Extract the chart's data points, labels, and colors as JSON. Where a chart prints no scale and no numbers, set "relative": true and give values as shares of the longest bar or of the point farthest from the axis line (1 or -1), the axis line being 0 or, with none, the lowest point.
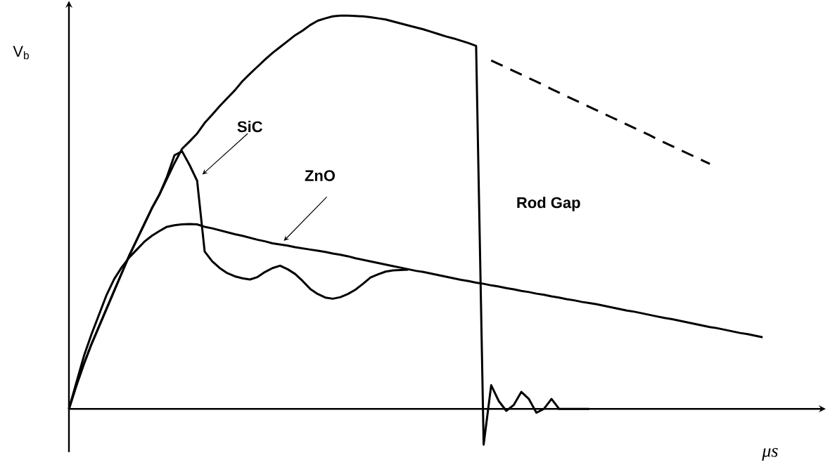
{
  "chart_data": {
    "type": "line",
    "relative": true,
    "xlabel": "μs",
    "ylabel": "V$_{b}$",
    "marker": "none",
    "legend": false,
    "categories": [
      null,
      null,
      null,
      null,
      null,
      null,
      null,
      null,
      null,
      null,
      null,
      null,
      null,
      null,
      null,
      null,
      null,
      null,
      null,
      null,
      null,
      null,
      null,
      null,
      null,
      null,
      null,
      null,
      null,
      null,
      null,
      null,
      null,
      null,
      null,
      null,
      null,
      null,
      null,
      null,
      null,
      null,
      null,
      null,
      null,
      null,
      null,
      null,
      null,
      null,
      null,
      null,
      null,
      null,
      null,
      null,
      null,
      null,
      null,
      null,
      null,
      null,
      null,
      null,
      null,
      null,
      null,
      null,
      null,
      null,
      null,
      null,
      null,
      null,
      null,
      null,
      null,
      null,
      null,
      null,
      null,
      null,
      null,
      null,
      null,
      null,
      null,
      null,
      null,
      null,
      null,
      null,
      null
    ],
    "series": [
      {
        "name": "Rod Gap",
        "color": "#000000",
        "line_style": "solid",
        "values": [
          0,
          0.06,
          0.115,
          0.165,
          0.21,
          0.255,
          0.3,
          0.345,
          0.39,
          0.43,
          0.47,
          0.51,
          0.545,
          0.585,
          0.625,
          0.661,
          0.68,
          0.7,
          0.727,
          0.748,
          0.77,
          0.79,
          0.81,
          0.833,
          0.852,
          0.87,
          0.888,
          0.905,
          0.92,
          0.935,
          0.95,
          0.962,
          0.976,
          0.987,
          0.993,
          0.998,
          1,
          1,
          0.999,
          0.998,
          0.996,
          0.993,
          0.99,
          0.985,
          0.98,
          0.975,
          0.97,
          0.965,
          0.959,
          0.953,
          0.947,
          0.942,
          0.936,
          0.93,
          0.923,
          -0.091,
          0.06,
          0.02,
          -0.005,
          0.01,
          0.043,
          0.025,
          -0.01,
          0,
          0.025,
          0,
          0,
          0,
          0,
          0,
          null,
          null,
          null,
          null,
          null,
          null,
          null,
          null,
          null,
          null,
          null,
          null,
          null,
          null,
          null,
          null,
          null,
          null,
          null,
          null,
          null,
          null,
          null
        ]
      },
      {
        "color": "#000000",
        "line_style": "dashed",
        "values": [
          null,
          null,
          null,
          null,
          null,
          null,
          null,
          null,
          null,
          null,
          null,
          null,
          null,
          null,
          null,
          null,
          null,
          null,
          null,
          null,
          null,
          null,
          null,
          null,
          null,
          null,
          null,
          null,
          null,
          null,
          null,
          null,
          null,
          null,
          null,
          null,
          null,
          null,
          null,
          null,
          null,
          null,
          null,
          null,
          null,
          null,
          null,
          null,
          null,
          null,
          null,
          null,
          null,
          null,
          null,
          null,
          0.886,
          0.877,
          0.868,
          0.859,
          0.85,
          0.841,
          0.832,
          0.823,
          0.813,
          0.804,
          0.795,
          0.786,
          0.777,
          0.768,
          0.759,
          0.75,
          0.741,
          0.732,
          0.723,
          0.714,
          0.705,
          0.696,
          0.686,
          0.677,
          0.668,
          0.659,
          0.65,
          0.641,
          0.632,
          0.623,
          null,
          null,
          null,
          null,
          null,
          null,
          null
        ]
      },
      {
        "name": "SiC",
        "color": "#000000",
        "line_style": "solid",
        "values": [
          0,
          0.06,
          0.115,
          0.165,
          0.21,
          0.255,
          0.3,
          0.345,
          0.39,
          0.43,
          0.47,
          0.51,
          0.545,
          0.59,
          0.645,
          0.655,
          0.62,
          0.58,
          0.4,
          0.375,
          0.358,
          0.345,
          0.337,
          0.332,
          0.329,
          0.335,
          0.348,
          0.358,
          0.364,
          0.355,
          0.343,
          0.325,
          0.305,
          0.292,
          0.283,
          0.28,
          0.284,
          0.292,
          0.303,
          0.318,
          0.334,
          0.342,
          0.349,
          0.352,
          0.353,
          0.354,
          null,
          null,
          null,
          null,
          null,
          null,
          null,
          null,
          null,
          null,
          null,
          null,
          null,
          null,
          null,
          null,
          null,
          null,
          null,
          null,
          null,
          null,
          null,
          null,
          null,
          null,
          null,
          null,
          null,
          null,
          null,
          null,
          null,
          null,
          null,
          null,
          null,
          null,
          null,
          null,
          null,
          null,
          null,
          null,
          null,
          null,
          null
        ]
      },
      {
        "name": "ZnO",
        "color": "#000000",
        "line_style": "solid",
        "values": [
          0,
          0.068,
          0.135,
          0.19,
          0.24,
          0.29,
          0.33,
          0.36,
          0.385,
          0.405,
          0.425,
          0.44,
          0.452,
          0.463,
          0.467,
          0.469,
          0.47,
          0.469,
          0.463,
          0.459,
          0.454,
          0.449,
          0.444,
          0.44,
          0.435,
          0.43,
          0.426,
          0.421,
          0.418,
          0.415,
          0.411,
          0.408,
          0.405,
          0.402,
          0.399,
          0.395,
          0.392,
          0.388,
          0.383,
          0.379,
          0.375,
          0.371,
          0.367,
          0.363,
          0.359,
          0.355,
          0.351,
          0.348,
          0.344,
          0.34,
          0.336,
          0.332,
          0.328,
          0.325,
          0.321,
          0.318,
          0.314,
          0.311,
          0.307,
          0.304,
          0.3,
          0.297,
          0.293,
          0.29,
          0.286,
          0.283,
          0.279,
          0.276,
          0.272,
          0.269,
          0.266,
          0.262,
          0.258,
          0.254,
          0.25,
          0.247,
          0.243,
          0.239,
          0.235,
          0.231,
          0.228,
          0.224,
          0.22,
          0.216,
          0.212,
          0.208,
          0.205,
          0.201,
          0.197,
          0.193,
          0.19,
          0.186,
          0.182
        ]
      }
    ]
  }
}
